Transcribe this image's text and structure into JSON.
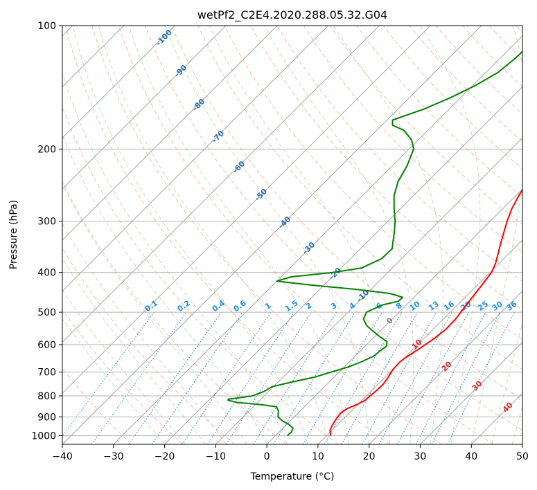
{
  "chart_data": {
    "type": "line",
    "subtype": "skew-T log-P diagram",
    "title": "wetPf2_C2E4.2020.288.05.32.G04",
    "xlabel": "Temperature (°C)",
    "ylabel": "Pressure (hPa)",
    "xlim": [
      -40,
      50
    ],
    "ylim": [
      1050,
      100
    ],
    "y_scale": "log",
    "x_ticks": [
      "−40",
      "−30",
      "−20",
      "−10",
      "0",
      "10",
      "20",
      "30",
      "40",
      "50"
    ],
    "x_tick_values": [
      -40,
      -30,
      -20,
      -10,
      0,
      10,
      20,
      30,
      40,
      50
    ],
    "y_ticks": [
      "100",
      "200",
      "300",
      "400",
      "500",
      "600",
      "700",
      "800",
      "900",
      "1000"
    ],
    "y_tick_values": [
      100,
      200,
      300,
      400,
      500,
      600,
      700,
      800,
      900,
      1000
    ],
    "grid": true,
    "series": [
      {
        "role": "temperature",
        "color": "#ff0000",
        "points": [
          [
            1000,
            10.8
          ],
          [
            970,
            9.6
          ],
          [
            940,
            9.0
          ],
          [
            910,
            8.6
          ],
          [
            880,
            8.3
          ],
          [
            860,
            8.7
          ],
          [
            840,
            9.8
          ],
          [
            820,
            10.6
          ],
          [
            800,
            10.7
          ],
          [
            780,
            10.9
          ],
          [
            750,
            11.0
          ],
          [
            720,
            10.6
          ],
          [
            690,
            10.0
          ],
          [
            660,
            9.9
          ],
          [
            640,
            10.3
          ],
          [
            610,
            11.2
          ],
          [
            580,
            12.0
          ],
          [
            550,
            12.5
          ],
          [
            520,
            12.4
          ],
          [
            490,
            11.9
          ],
          [
            460,
            11.4
          ],
          [
            430,
            10.9
          ],
          [
            400,
            10.3
          ],
          [
            380,
            9.3
          ],
          [
            360,
            7.9
          ],
          [
            340,
            6.4
          ],
          [
            320,
            4.9
          ],
          [
            300,
            3.3
          ],
          [
            280,
            1.8
          ],
          [
            260,
            0.6
          ],
          [
            240,
            -0.4
          ],
          [
            220,
            -0.8
          ],
          [
            200,
            -0.6
          ],
          [
            190,
            0.2
          ],
          [
            180,
            1.8
          ],
          [
            170,
            4.6
          ],
          [
            160,
            7.8
          ],
          [
            150,
            9.1
          ],
          [
            140,
            10.3
          ],
          [
            130,
            12.0
          ],
          [
            120,
            13.9
          ],
          [
            110,
            16.3
          ],
          [
            100,
            19.3
          ]
        ]
      },
      {
        "role": "dewpoint",
        "color": "#008000",
        "points": [
          [
            1000,
            2.3
          ],
          [
            980,
            2.4
          ],
          [
            960,
            2.0
          ],
          [
            940,
            0.5
          ],
          [
            920,
            -1.6
          ],
          [
            900,
            -3.2
          ],
          [
            870,
            -4.3
          ],
          [
            850,
            -5.5
          ],
          [
            840,
            -9.0
          ],
          [
            830,
            -14.0
          ],
          [
            820,
            -16.2
          ],
          [
            815,
            -16.4
          ],
          [
            810,
            -15.0
          ],
          [
            800,
            -12.3
          ],
          [
            780,
            -10.9
          ],
          [
            760,
            -10.3
          ],
          [
            740,
            -7.3
          ],
          [
            720,
            -3.8
          ],
          [
            700,
            -1.6
          ],
          [
            680,
            0.8
          ],
          [
            660,
            2.4
          ],
          [
            640,
            3.6
          ],
          [
            620,
            3.9
          ],
          [
            605,
            4.2
          ],
          [
            590,
            3.4
          ],
          [
            570,
            0.5
          ],
          [
            540,
            -3.6
          ],
          [
            520,
            -5.6
          ],
          [
            500,
            -6.4
          ],
          [
            480,
            -4.7
          ],
          [
            470,
            -2.3
          ],
          [
            460,
            -2.2
          ],
          [
            450,
            -5.5
          ],
          [
            440,
            -12.7
          ],
          [
            430,
            -22.0
          ],
          [
            420,
            -30.0
          ],
          [
            410,
            -28.0
          ],
          [
            400,
            -20.8
          ],
          [
            390,
            -16.0
          ],
          [
            370,
            -13.9
          ],
          [
            350,
            -13.8
          ],
          [
            340,
            -14.7
          ],
          [
            320,
            -16.5
          ],
          [
            300,
            -18.6
          ],
          [
            280,
            -21.2
          ],
          [
            260,
            -23.8
          ],
          [
            240,
            -25.8
          ],
          [
            220,
            -27.1
          ],
          [
            200,
            -29.1
          ],
          [
            190,
            -31.3
          ],
          [
            180,
            -34.7
          ],
          [
            175,
            -37.9
          ],
          [
            170,
            -38.9
          ],
          [
            165,
            -37.0
          ],
          [
            160,
            -35.0
          ],
          [
            150,
            -32.0
          ],
          [
            140,
            -29.5
          ],
          [
            130,
            -27.6
          ],
          [
            120,
            -27.0
          ],
          [
            110,
            -26.8
          ],
          [
            100,
            -27.7
          ]
        ]
      }
    ],
    "dry_adiabat_labels": [
      "-100",
      "-90",
      "-80",
      "-70",
      "-60",
      "-50",
      "-40",
      "-30",
      "-20",
      "-10",
      "0",
      "10",
      "20",
      "30",
      "40"
    ],
    "mixing_ratio_labels": [
      "0.1",
      "0.2",
      "0.4",
      "0.6",
      "1",
      "1.5",
      "2",
      "3",
      "4",
      "6",
      "8",
      "10",
      "13",
      "16",
      "20",
      "25",
      "30",
      "36"
    ],
    "colors": {
      "isotherm": "#a6a6a6",
      "isobar": "#b3b3b3",
      "dry_adiabat": "#f7a98f",
      "moist_adiabat": "#9fd39f",
      "mixing_ratio": "#3d8fd6",
      "dry_label": "#2a6fad",
      "dry_label_warm": "#d62728",
      "dry_label_zero": "#808080",
      "mixing_label": "#1f8fe6"
    }
  }
}
